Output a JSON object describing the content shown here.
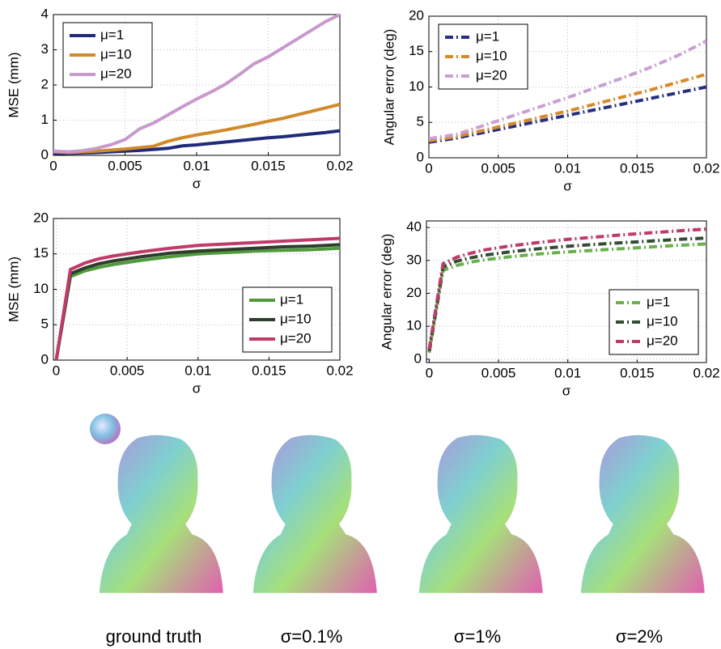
{
  "chart_data": [
    {
      "type": "line",
      "xlabel": "σ",
      "ylabel": "MSE (mm)",
      "xlim": [
        0,
        0.02
      ],
      "ylim": [
        0,
        4
      ],
      "xticks": [
        0,
        0.005,
        0.01,
        0.015,
        0.02
      ],
      "yticks": [
        0,
        1,
        2,
        3,
        4
      ],
      "grid": true,
      "legend": "top-left",
      "line_style": "solid",
      "x": [
        0,
        0.001,
        0.002,
        0.003,
        0.004,
        0.005,
        0.006,
        0.007,
        0.008,
        0.009,
        0.01,
        0.011,
        0.012,
        0.013,
        0.014,
        0.015,
        0.016,
        0.017,
        0.018,
        0.019,
        0.02
      ],
      "series": [
        {
          "name": "μ=1",
          "color": "#1f2a7a",
          "values": [
            0.05,
            0.06,
            0.07,
            0.08,
            0.1,
            0.12,
            0.14,
            0.17,
            0.2,
            0.27,
            0.3,
            0.34,
            0.38,
            0.42,
            0.46,
            0.5,
            0.53,
            0.57,
            0.61,
            0.65,
            0.7
          ]
        },
        {
          "name": "μ=10",
          "color": "#d08a2a",
          "values": [
            0.1,
            0.08,
            0.1,
            0.12,
            0.15,
            0.18,
            0.22,
            0.26,
            0.4,
            0.5,
            0.58,
            0.65,
            0.72,
            0.8,
            0.88,
            0.97,
            1.05,
            1.15,
            1.25,
            1.35,
            1.45
          ]
        },
        {
          "name": "μ=20",
          "color": "#c79acb",
          "values": [
            0.12,
            0.1,
            0.13,
            0.2,
            0.3,
            0.45,
            0.75,
            0.92,
            1.15,
            1.38,
            1.6,
            1.8,
            2.02,
            2.3,
            2.6,
            2.8,
            3.05,
            3.3,
            3.55,
            3.8,
            4.0
          ]
        }
      ]
    },
    {
      "type": "line",
      "xlabel": "σ",
      "ylabel": "Angular error (deg)",
      "xlim": [
        0,
        0.02
      ],
      "ylim": [
        0,
        20
      ],
      "xticks": [
        0,
        0.005,
        0.01,
        0.015,
        0.02
      ],
      "yticks": [
        0,
        5,
        10,
        15,
        20
      ],
      "grid": true,
      "legend": "top-left",
      "line_style": "dashdot",
      "x": [
        0,
        0.002,
        0.004,
        0.006,
        0.008,
        0.01,
        0.012,
        0.014,
        0.016,
        0.018,
        0.02
      ],
      "series": [
        {
          "name": "μ=1",
          "color": "#26307f",
          "values": [
            2.2,
            2.8,
            3.6,
            4.4,
            5.2,
            6.0,
            6.8,
            7.6,
            8.4,
            9.2,
            10.0
          ]
        },
        {
          "name": "μ=10",
          "color": "#d68a2c",
          "values": [
            2.4,
            3.0,
            3.9,
            4.8,
            5.7,
            6.6,
            7.6,
            8.6,
            9.6,
            10.7,
            11.8
          ]
        },
        {
          "name": "μ=20",
          "color": "#c9a0d3",
          "values": [
            2.7,
            3.3,
            4.6,
            5.9,
            7.2,
            8.5,
            9.9,
            11.3,
            12.8,
            14.5,
            16.5
          ]
        }
      ]
    },
    {
      "type": "line",
      "xlabel": "σ",
      "ylabel": "MSE (mm)",
      "xlim": [
        -0.0002,
        0.02
      ],
      "ylim": [
        0,
        20
      ],
      "xticks": [
        0,
        0.005,
        0.01,
        0.015,
        0.02
      ],
      "yticks": [
        0,
        5,
        10,
        15,
        20
      ],
      "grid": true,
      "legend": "bottom-right",
      "line_style": "solid",
      "x": [
        0,
        0.001,
        0.002,
        0.003,
        0.004,
        0.006,
        0.008,
        0.01,
        0.012,
        0.014,
        0.016,
        0.018,
        0.02
      ],
      "series": [
        {
          "name": "μ=1",
          "color": "#4f9a3a",
          "values": [
            0,
            11.8,
            12.6,
            13.1,
            13.5,
            14.1,
            14.6,
            15.0,
            15.2,
            15.4,
            15.5,
            15.6,
            15.8
          ]
        },
        {
          "name": "μ=10",
          "color": "#2e3d2e",
          "values": [
            0,
            12.2,
            13.0,
            13.6,
            14.0,
            14.6,
            15.1,
            15.4,
            15.6,
            15.8,
            16.0,
            16.1,
            16.3
          ]
        },
        {
          "name": "μ=20",
          "color": "#c03a6a",
          "values": [
            0,
            12.8,
            13.7,
            14.3,
            14.7,
            15.3,
            15.8,
            16.2,
            16.4,
            16.6,
            16.8,
            17.0,
            17.2
          ]
        }
      ]
    },
    {
      "type": "line",
      "xlabel": "σ",
      "ylabel": "Angular error (deg)",
      "xlim": [
        -0.0002,
        0.02
      ],
      "ylim": [
        -1,
        42
      ],
      "xticks": [
        0,
        0.005,
        0.01,
        0.015,
        0.02
      ],
      "yticks": [
        0,
        10,
        20,
        30,
        40
      ],
      "grid": true,
      "legend": "bottom-right",
      "line_style": "dashdot",
      "x": [
        0,
        0.001,
        0.002,
        0.003,
        0.004,
        0.006,
        0.008,
        0.01,
        0.012,
        0.014,
        0.016,
        0.018,
        0.02
      ],
      "series": [
        {
          "name": "μ=1",
          "color": "#6ab04c",
          "values": [
            2,
            27,
            28.5,
            29.5,
            30.2,
            31.2,
            32.0,
            32.6,
            33.1,
            33.6,
            34.1,
            34.6,
            35.0
          ]
        },
        {
          "name": "μ=10",
          "color": "#344c34",
          "values": [
            2.5,
            28,
            29.8,
            30.8,
            31.6,
            32.7,
            33.6,
            34.3,
            34.9,
            35.4,
            35.9,
            36.4,
            36.8
          ]
        },
        {
          "name": "μ=20",
          "color": "#c03a6a",
          "values": [
            3,
            29,
            31,
            32.2,
            33.2,
            34.5,
            35.5,
            36.4,
            37.1,
            37.8,
            38.4,
            39.0,
            39.5
          ]
        }
      ]
    }
  ],
  "figure": {
    "captions": [
      "ground truth",
      "σ=0.1%",
      "σ=1%",
      "σ=2%"
    ]
  }
}
